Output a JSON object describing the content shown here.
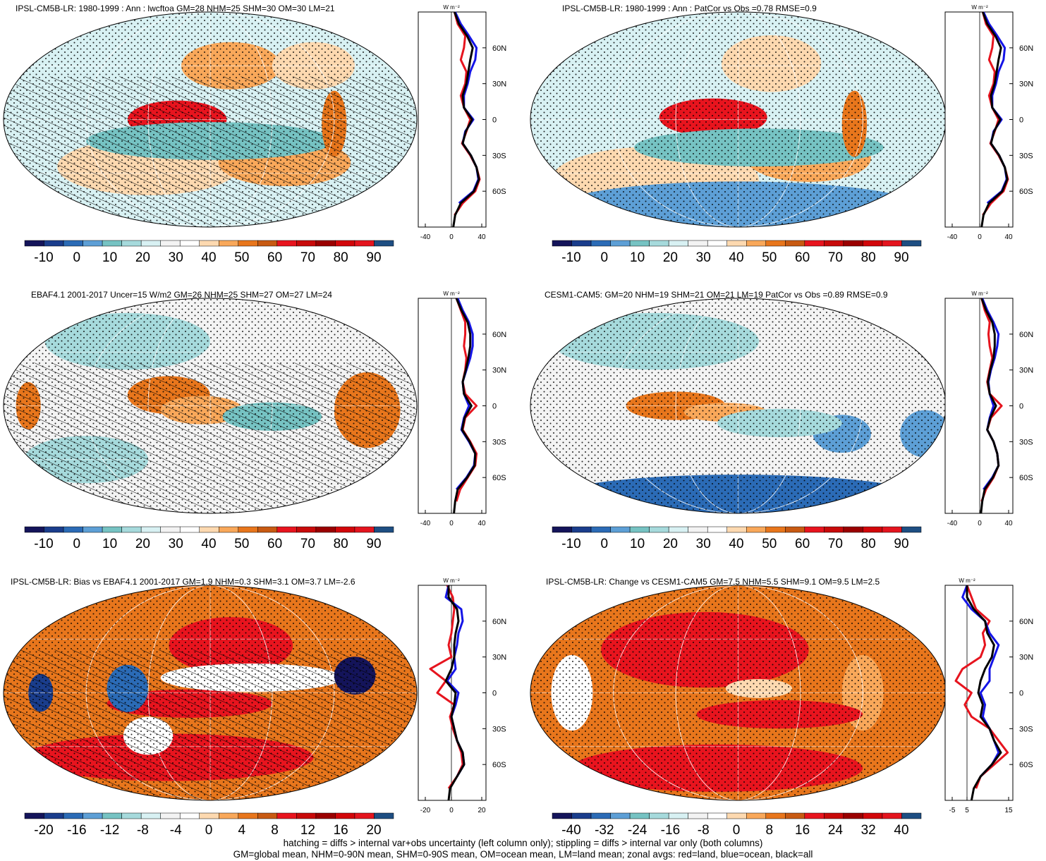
{
  "colors": {
    "scale": [
      "#14145a",
      "#1a3d8c",
      "#2b6bb6",
      "#5d9fd6",
      "#76c3c3",
      "#a6dadc",
      "#d8f1f3",
      "#f3f3f3",
      "#ffffff",
      "#fdd9b0",
      "#f9a85a",
      "#e8761c",
      "#c85a12",
      "#e8141e",
      "#c80a0a",
      "#9a0000",
      "#d2060a",
      "#e4141e",
      "#1e4e82"
    ],
    "land_line": "#e6141e",
    "ocean_line": "#1414e6",
    "all_line": "#000000"
  },
  "panels": [
    {
      "title": "IPSL-CM5B-LR: 1980-1999 : Ann : lwcftoa GM=28 NHM=25 SHM=30 OM=30 LM=21",
      "colorbar_labels": [
        "-10",
        "0",
        "10",
        "20",
        "30",
        "40",
        "50",
        "60",
        "70",
        "80",
        "90"
      ],
      "zonal_xticks": [
        "-40",
        "0",
        "40"
      ],
      "zonal_unit": "W m⁻²",
      "hatched": true,
      "zonal": {
        "lat": [
          -90,
          -80,
          -70,
          -60,
          -50,
          -40,
          -30,
          -20,
          -10,
          0,
          10,
          20,
          30,
          40,
          50,
          60,
          70,
          80,
          90
        ],
        "land": [
          null,
          5,
          18,
          38,
          45,
          40,
          30,
          17,
          24,
          30,
          20,
          15,
          22,
          24,
          15,
          20,
          22,
          10,
          5
        ],
        "ocean": [
          null,
          null,
          12,
          35,
          43,
          40,
          31,
          18,
          22,
          35,
          20,
          20,
          26,
          30,
          38,
          40,
          28,
          15,
          6
        ],
        "all": [
          3,
          6,
          15,
          36,
          44,
          40,
          31,
          18,
          23,
          33,
          20,
          18,
          24,
          27,
          30,
          34,
          25,
          12,
          5
        ]
      }
    },
    {
      "title": "IPSL-CM5B-LR: 1980-1999 : Ann : PatCor vs Obs =0.78 RMSE=0.9",
      "colorbar_labels": [
        "-10",
        "0",
        "10",
        "20",
        "30",
        "40",
        "50",
        "60",
        "70",
        "80",
        "90"
      ],
      "zonal_xticks": [
        "-40",
        "0",
        "40"
      ],
      "zonal_unit": "W m⁻²",
      "hatched": false,
      "zonal": {
        "lat": [
          -90,
          -80,
          -70,
          -60,
          -50,
          -40,
          -30,
          -20,
          -10,
          0,
          10,
          20,
          30,
          40,
          50,
          60,
          70,
          80,
          90
        ],
        "land": [
          null,
          5,
          18,
          38,
          45,
          40,
          30,
          17,
          24,
          30,
          20,
          15,
          22,
          24,
          15,
          20,
          22,
          10,
          5
        ],
        "ocean": [
          null,
          null,
          12,
          35,
          43,
          40,
          31,
          18,
          22,
          35,
          20,
          20,
          26,
          30,
          38,
          40,
          28,
          15,
          6
        ],
        "all": [
          3,
          6,
          15,
          36,
          44,
          40,
          31,
          18,
          23,
          33,
          20,
          18,
          24,
          27,
          30,
          34,
          25,
          12,
          5
        ]
      }
    },
    {
      "title": "EBAF4.1 2001-2017 Uncer=15 W/m2 GM=26 NHM=25 SHM=27 OM=27 LM=24",
      "colorbar_labels": [
        "-10",
        "0",
        "10",
        "20",
        "30",
        "40",
        "50",
        "60",
        "70",
        "80",
        "90"
      ],
      "zonal_xticks": [
        "-40",
        "0",
        "40"
      ],
      "zonal_unit": "W m⁻²",
      "hatched": true,
      "zonal": {
        "lat": [
          -90,
          -80,
          -70,
          -60,
          -50,
          -40,
          -30,
          -20,
          -10,
          0,
          10,
          20,
          30,
          40,
          50,
          60,
          70,
          80,
          90
        ],
        "land": [
          null,
          8,
          14,
          26,
          38,
          40,
          30,
          18,
          22,
          40,
          22,
          18,
          22,
          24,
          20,
          22,
          22,
          15,
          8
        ],
        "ocean": [
          null,
          null,
          8,
          24,
          36,
          38,
          28,
          16,
          20,
          28,
          20,
          18,
          24,
          30,
          34,
          34,
          28,
          18,
          10
        ],
        "all": [
          4,
          6,
          10,
          25,
          37,
          38,
          29,
          17,
          21,
          32,
          20,
          18,
          23,
          27,
          30,
          30,
          26,
          16,
          8
        ]
      }
    },
    {
      "title": "CESM1-CAM5: GM=20 NHM=19 SHM=21 OM=21 LM=19 PatCor vs Obs =0.89 RMSE=0.9",
      "colorbar_labels": [
        "-10",
        "0",
        "10",
        "20",
        "30",
        "40",
        "50",
        "60",
        "70",
        "80",
        "90"
      ],
      "zonal_xticks": [
        "-40",
        "0",
        "40"
      ],
      "zonal_unit": "W m⁻²",
      "hatched": false,
      "zonal": {
        "lat": [
          -90,
          -80,
          -70,
          -60,
          -50,
          -40,
          -30,
          -20,
          -10,
          0,
          10,
          20,
          30,
          40,
          50,
          60,
          70,
          80,
          90
        ],
        "land": [
          null,
          3,
          10,
          22,
          30,
          28,
          22,
          12,
          18,
          35,
          16,
          12,
          16,
          20,
          16,
          14,
          16,
          8,
          3
        ],
        "ocean": [
          null,
          null,
          6,
          20,
          30,
          28,
          22,
          12,
          16,
          22,
          16,
          14,
          18,
          24,
          28,
          30,
          22,
          12,
          4
        ],
        "all": [
          2,
          4,
          8,
          21,
          30,
          28,
          22,
          12,
          17,
          26,
          16,
          13,
          17,
          22,
          24,
          24,
          20,
          10,
          3
        ]
      }
    },
    {
      "title": "IPSL-CM5B-LR: Bias vs EBAF4.1 2001-2017 GM=1.9 NHM=0.3 SHM=3.1 OM=3.7 LM=-2.6",
      "colorbar_labels": [
        "-20",
        "-16",
        "-12",
        "-8",
        "-4",
        "0",
        "4",
        "8",
        "12",
        "16",
        "20"
      ],
      "zonal_xticks": [
        "-20",
        "0",
        "20"
      ],
      "zonal_unit": "W m⁻²",
      "hatched": true,
      "zonal": {
        "lat": [
          -90,
          -80,
          -70,
          -60,
          -50,
          -40,
          -30,
          -20,
          -10,
          0,
          10,
          20,
          30,
          40,
          50,
          60,
          70,
          80,
          90
        ],
        "land": [
          null,
          -2,
          4,
          8,
          7,
          4,
          1,
          -1,
          2,
          -10,
          -4,
          -15,
          0,
          -2,
          0,
          1,
          2,
          1,
          -3
        ],
        "ocean": [
          null,
          null,
          4,
          9,
          8,
          4,
          2,
          0,
          3,
          5,
          -3,
          3,
          2,
          4,
          5,
          8,
          7,
          -4,
          -2
        ],
        "all": [
          -2,
          -1,
          4,
          9,
          8,
          4,
          2,
          0,
          2,
          3,
          -4,
          0,
          2,
          2,
          3,
          5,
          4,
          -2,
          -2
        ]
      }
    },
    {
      "title": "IPSL-CM5B-LR: Change vs CESM1-CAM5 GM=7.5 NHM=5.5 SHM=9.1 OM=9.5 LM=2.5",
      "colorbar_labels": [
        "-40",
        "-32",
        "-24",
        "-16",
        "-8",
        "0",
        "8",
        "16",
        "24",
        "32",
        "40"
      ],
      "zonal_xticks": [
        "-5",
        "5",
        "15"
      ],
      "zonal_unit": "W m⁻²",
      "hatched": false,
      "zonal": {
        "lat": [
          -90,
          -80,
          -70,
          -60,
          -50,
          -40,
          -30,
          -20,
          -10,
          0,
          10,
          20,
          30,
          40,
          50,
          60,
          70,
          80,
          90
        ],
        "land": [
          null,
          4,
          6,
          12,
          18,
          14,
          10,
          2,
          -1,
          2,
          -5,
          -2,
          6,
          8,
          7,
          10,
          4,
          2,
          0
        ],
        "ocean": [
          null,
          null,
          6,
          11,
          14,
          12,
          10,
          7,
          8,
          6,
          10,
          10,
          12,
          14,
          10,
          8,
          2,
          -2,
          0
        ],
        "all": [
          2,
          3,
          6,
          11,
          15,
          12,
          10,
          6,
          7,
          5,
          6,
          8,
          11,
          12,
          9,
          8,
          3,
          0,
          0
        ]
      }
    }
  ],
  "lat_labels": [
    "60N",
    "30N",
    "0",
    "30S",
    "60S"
  ],
  "footer": {
    "line1": "hatching = diffs > internal var+obs uncertainty (left column only); stippling = diffs > internal var only (both columns)",
    "line2": "GM=global mean, NHM=0-90N mean, SHM=0-90S mean, OM=ocean mean, LM=land mean; zonal avgs: red=land, blue=ocean, black=all"
  },
  "chart_data": [
    {
      "type": "heatmap",
      "title": "IPSL-CM5B-LR: 1980-1999 : Ann : lwcftoa GM=28 NHM=25 SHM=30 OM=30 LM=21",
      "colorbar": {
        "min": -10,
        "max": 90,
        "ticks": [
          -10,
          0,
          10,
          20,
          30,
          40,
          50,
          60,
          70,
          80,
          90
        ]
      },
      "zonal_mean": {
        "x_range": [
          -40,
          40
        ],
        "unit": "W m-2",
        "lat_ticks": [
          "60N",
          "30N",
          "0",
          "30S",
          "60S"
        ]
      }
    },
    {
      "type": "heatmap",
      "title": "IPSL-CM5B-LR: 1980-1999 : Ann : PatCor vs Obs =0.78 RMSE=0.9",
      "colorbar": {
        "min": -10,
        "max": 90,
        "ticks": [
          -10,
          0,
          10,
          20,
          30,
          40,
          50,
          60,
          70,
          80,
          90
        ]
      }
    },
    {
      "type": "heatmap",
      "title": "EBAF4.1 2001-2017 Uncer=15 W/m2 GM=26 NHM=25 SHM=27 OM=27 LM=24",
      "colorbar": {
        "min": -10,
        "max": 90,
        "ticks": [
          -10,
          0,
          10,
          20,
          30,
          40,
          50,
          60,
          70,
          80,
          90
        ]
      }
    },
    {
      "type": "heatmap",
      "title": "CESM1-CAM5: GM=20 NHM=19 SHM=21 OM=21 LM=19 PatCor vs Obs =0.89 RMSE=0.9",
      "colorbar": {
        "min": -10,
        "max": 90,
        "ticks": [
          -10,
          0,
          10,
          20,
          30,
          40,
          50,
          60,
          70,
          80,
          90
        ]
      }
    },
    {
      "type": "heatmap",
      "title": "IPSL-CM5B-LR: Bias vs EBAF4.1 2001-2017 GM=1.9 NHM=0.3 SHM=3.1 OM=3.7 LM=-2.6",
      "colorbar": {
        "min": -20,
        "max": 20,
        "ticks": [
          -20,
          -16,
          -12,
          -8,
          -4,
          0,
          4,
          8,
          12,
          16,
          20
        ]
      },
      "zonal_mean": {
        "x_range": [
          -20,
          20
        ]
      }
    },
    {
      "type": "heatmap",
      "title": "IPSL-CM5B-LR: Change vs CESM1-CAM5 GM=7.5 NHM=5.5 SHM=9.1 OM=9.5 LM=2.5",
      "colorbar": {
        "min": -40,
        "max": 40,
        "ticks": [
          -40,
          -32,
          -24,
          -16,
          -8,
          0,
          8,
          16,
          24,
          32,
          40
        ]
      },
      "zonal_mean": {
        "x_range": [
          -5,
          15
        ]
      }
    }
  ]
}
